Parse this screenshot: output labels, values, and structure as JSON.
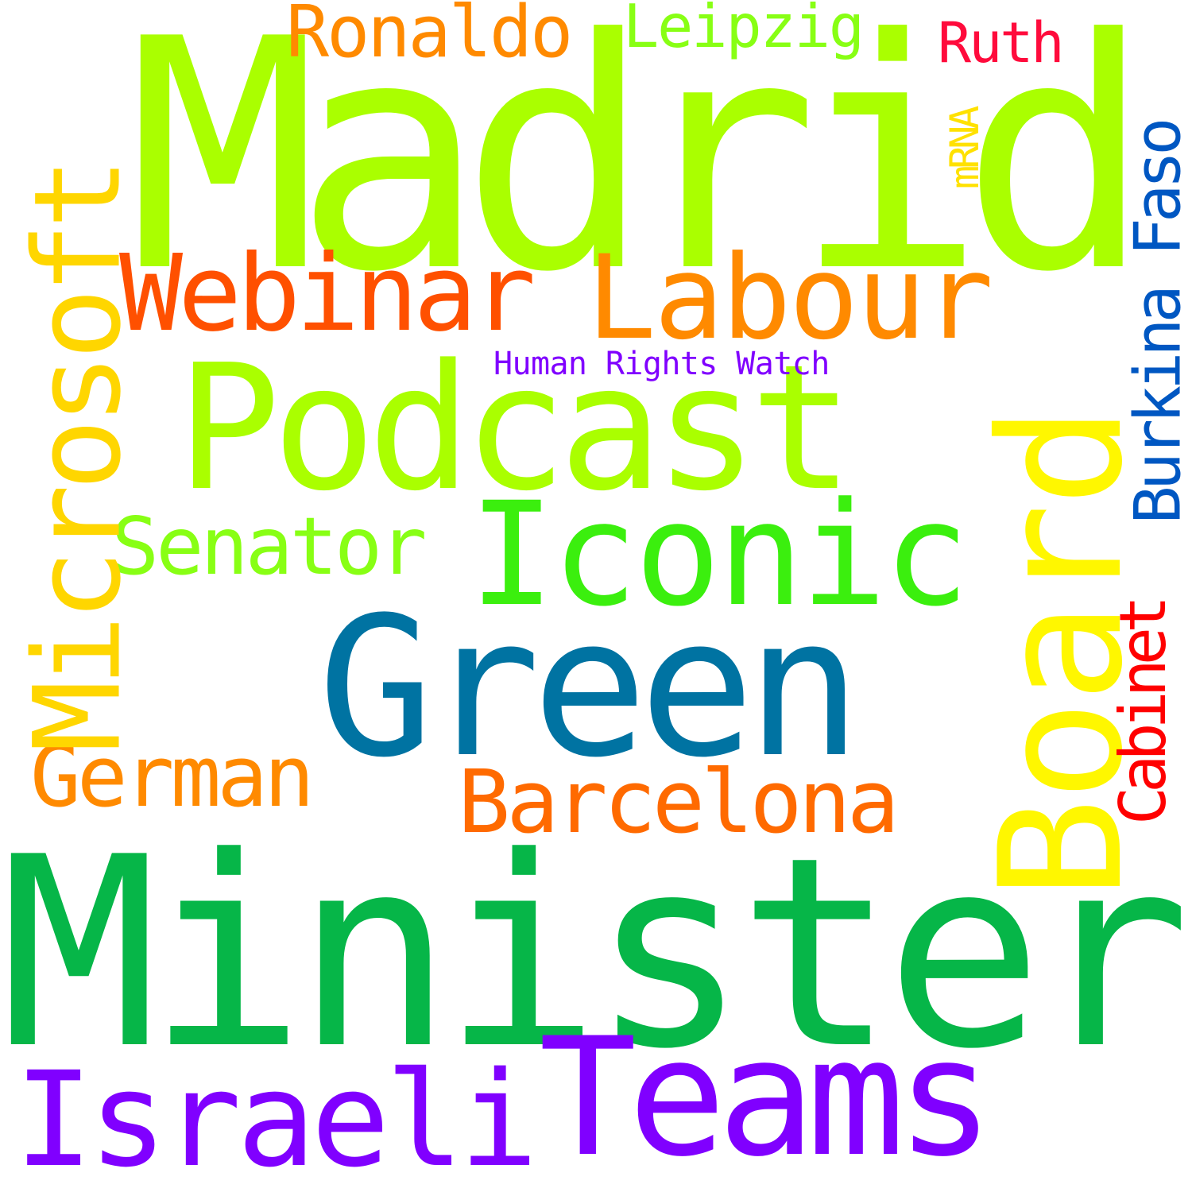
{
  "words": [
    {
      "id": "madrid",
      "text": "Madrid",
      "color": "#aaff00",
      "orientation": "horizontal"
    },
    {
      "id": "minister",
      "text": "Minister",
      "color": "#06b648",
      "orientation": "horizontal"
    },
    {
      "id": "green",
      "text": "Green",
      "color": "#0073a2",
      "orientation": "horizontal"
    },
    {
      "id": "podcast",
      "text": "Podcast",
      "color": "#aaff00",
      "orientation": "horizontal"
    },
    {
      "id": "iconic",
      "text": "Iconic",
      "color": "#3bef0e",
      "orientation": "horizontal"
    },
    {
      "id": "teams",
      "text": "Teams",
      "color": "#8000ff",
      "orientation": "horizontal"
    },
    {
      "id": "israeli",
      "text": "Israeli",
      "color": "#8000ff",
      "orientation": "horizontal"
    },
    {
      "id": "labour",
      "text": "Labour",
      "color": "#ff8a00",
      "orientation": "horizontal"
    },
    {
      "id": "webinar",
      "text": "Webinar",
      "color": "#ff5000",
      "orientation": "horizontal"
    },
    {
      "id": "senator",
      "text": "Senator",
      "color": "#88ff14",
      "orientation": "horizontal"
    },
    {
      "id": "german",
      "text": "German",
      "color": "#ff8a00",
      "orientation": "horizontal"
    },
    {
      "id": "barcelona",
      "text": "Barcelona",
      "color": "#ff6a00",
      "orientation": "horizontal"
    },
    {
      "id": "ronaldo",
      "text": "Ronaldo",
      "color": "#ff8a00",
      "orientation": "horizontal"
    },
    {
      "id": "leipzig",
      "text": "Leipzig",
      "color": "#88ff14",
      "orientation": "horizontal"
    },
    {
      "id": "ruth",
      "text": "Ruth",
      "color": "#ff0b3c",
      "orientation": "horizontal"
    },
    {
      "id": "human-rights-watch",
      "text": "Human Rights Watch",
      "color": "#8000ff",
      "orientation": "horizontal"
    },
    {
      "id": "microsoft",
      "text": "Microsoft",
      "color": "#ffd600",
      "orientation": "vertical"
    },
    {
      "id": "board",
      "text": "Board",
      "color": "#fff700",
      "orientation": "vertical"
    },
    {
      "id": "burkina-faso",
      "text": "Burkina Faso",
      "color": "#0057c2",
      "orientation": "vertical"
    },
    {
      "id": "cabinet",
      "text": "Cabinet",
      "color": "#ff0000",
      "orientation": "vertical"
    },
    {
      "id": "mrna",
      "text": "mRNA",
      "color": "#ffe100",
      "orientation": "vertical"
    }
  ]
}
